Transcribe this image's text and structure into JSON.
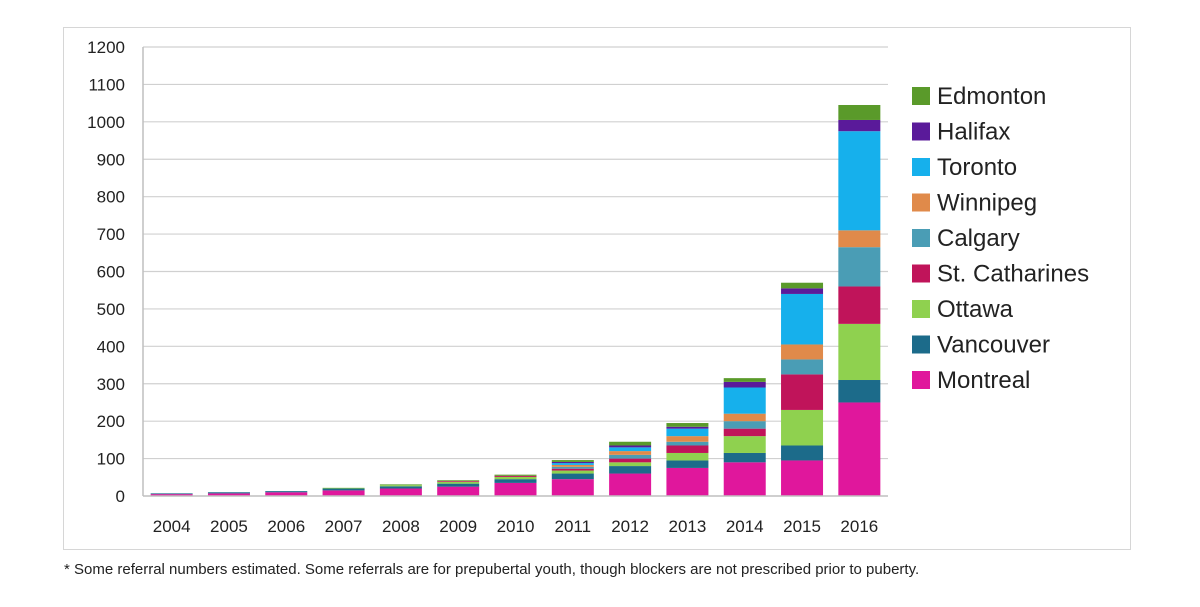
{
  "chart_data": {
    "type": "bar",
    "stacked": true,
    "title": "",
    "xlabel": "",
    "ylabel": "",
    "ylim": [
      0,
      1200
    ],
    "yticks": [
      0,
      100,
      200,
      300,
      400,
      500,
      600,
      700,
      800,
      900,
      1000,
      1100,
      1200
    ],
    "grid": true,
    "legend_position": "right",
    "categories": [
      "2004",
      "2005",
      "2006",
      "2007",
      "2008",
      "2009",
      "2010",
      "2011",
      "2012",
      "2013",
      "2014",
      "2015",
      "2016"
    ],
    "series": [
      {
        "name": "Montreal",
        "color": "#e0179c",
        "values": [
          5,
          7,
          10,
          15,
          20,
          25,
          35,
          45,
          60,
          75,
          90,
          95,
          250
        ]
      },
      {
        "name": "Vancouver",
        "color": "#1c6b8a",
        "values": [
          2,
          3,
          3,
          5,
          6,
          8,
          10,
          15,
          20,
          20,
          25,
          40,
          60
        ]
      },
      {
        "name": "Ottawa",
        "color": "#8fd14f",
        "values": [
          0,
          0,
          0,
          2,
          3,
          5,
          6,
          8,
          10,
          20,
          45,
          95,
          150
        ]
      },
      {
        "name": "St. Catharines",
        "color": "#c0145a",
        "values": [
          0,
          0,
          0,
          0,
          0,
          2,
          3,
          5,
          10,
          20,
          20,
          95,
          100
        ]
      },
      {
        "name": "Calgary",
        "color": "#4a9db5",
        "values": [
          0,
          0,
          0,
          0,
          0,
          0,
          0,
          5,
          10,
          10,
          20,
          40,
          105
        ]
      },
      {
        "name": "Winnipeg",
        "color": "#e08a4a",
        "values": [
          0,
          0,
          0,
          0,
          0,
          0,
          0,
          5,
          10,
          15,
          20,
          40,
          45
        ]
      },
      {
        "name": "Toronto",
        "color": "#16b0ec",
        "values": [
          0,
          0,
          0,
          0,
          0,
          0,
          0,
          5,
          10,
          20,
          70,
          135,
          265
        ]
      },
      {
        "name": "Halifax",
        "color": "#5a1a9a",
        "values": [
          0,
          0,
          0,
          0,
          0,
          0,
          0,
          3,
          5,
          5,
          15,
          15,
          30
        ]
      },
      {
        "name": "Edmonton",
        "color": "#5a9a2a",
        "values": [
          0,
          0,
          0,
          0,
          2,
          2,
          3,
          5,
          10,
          10,
          10,
          15,
          40
        ]
      }
    ],
    "legend_order": [
      "Edmonton",
      "Halifax",
      "Toronto",
      "Winnipeg",
      "Calgary",
      "St. Catharines",
      "Ottawa",
      "Vancouver",
      "Montreal"
    ]
  },
  "footnote": "* Some referral numbers estimated. Some referrals are for prepubertal youth, though blockers are not prescribed prior to puberty."
}
